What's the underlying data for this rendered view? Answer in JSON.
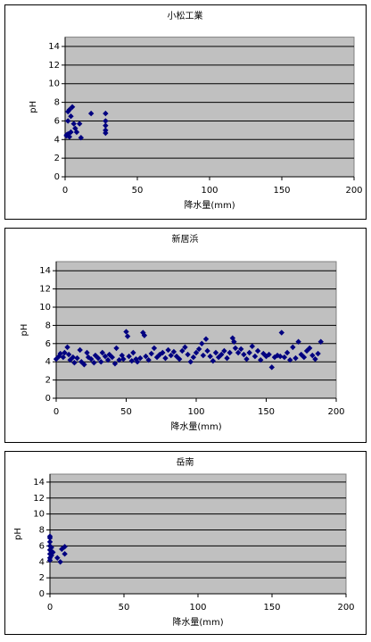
{
  "chart_data": [
    {
      "type": "scatter",
      "title": "小松工業",
      "x_label": "降水量(mm)",
      "y_label": "pH",
      "marker": "diamond",
      "grid": true,
      "xlim": [
        0,
        200
      ],
      "xticks": [
        0,
        50,
        100,
        150,
        200
      ],
      "ylim": [
        0,
        15
      ],
      "yticks": [
        0,
        2,
        4,
        6,
        8,
        10,
        12,
        14
      ],
      "series": [
        {
          "color": "#000080",
          "x": [
            1,
            1,
            2,
            2,
            3,
            3,
            4,
            4,
            5,
            6,
            7,
            8,
            10,
            11,
            18,
            28,
            28,
            28,
            28,
            28,
            2
          ],
          "values": [
            4.5,
            4.4,
            4.6,
            7.0,
            7.2,
            4.3,
            6.5,
            4.8,
            7.5,
            5.7,
            5.2,
            4.8,
            5.7,
            4.2,
            6.8,
            6.8,
            6.0,
            5.5,
            5.0,
            4.7,
            6.0
          ]
        }
      ]
    },
    {
      "type": "scatter",
      "title": "新居浜",
      "x_label": "降水量(mm)",
      "y_label": "pH",
      "marker": "diamond",
      "grid": true,
      "xlim": [
        0,
        200
      ],
      "xticks": [
        0,
        50,
        100,
        150,
        200
      ],
      "ylim": [
        0,
        15
      ],
      "yticks": [
        0,
        2,
        4,
        6,
        8,
        10,
        12,
        14
      ],
      "series": [
        {
          "color": "#000080",
          "x": [
            0,
            2,
            3,
            5,
            6,
            8,
            9,
            10,
            12,
            13,
            15,
            17,
            18,
            20,
            22,
            23,
            25,
            27,
            28,
            30,
            32,
            33,
            35,
            37,
            38,
            40,
            42,
            43,
            45,
            47,
            48,
            50,
            51,
            52,
            54,
            55,
            57,
            58,
            60,
            62,
            63,
            64,
            66,
            68,
            70,
            72,
            74,
            76,
            78,
            80,
            82,
            84,
            86,
            88,
            90,
            92,
            94,
            96,
            98,
            100,
            102,
            104,
            105,
            107,
            108,
            110,
            112,
            114,
            116,
            118,
            120,
            122,
            124,
            126,
            127,
            128,
            130,
            132,
            134,
            136,
            138,
            140,
            142,
            144,
            146,
            148,
            150,
            152,
            154,
            156,
            158,
            160,
            161,
            163,
            165,
            167,
            169,
            171,
            173,
            175,
            177,
            179,
            181,
            183,
            185,
            187,
            189
          ],
          "values": [
            4.3,
            4.6,
            4.9,
            4.5,
            5.0,
            5.6,
            4.8,
            4.2,
            4.5,
            3.9,
            4.4,
            5.3,
            4.0,
            3.7,
            5.0,
            4.5,
            4.3,
            3.9,
            4.7,
            4.4,
            4.0,
            5.0,
            4.6,
            4.2,
            4.8,
            4.5,
            3.8,
            5.5,
            4.2,
            4.7,
            4.3,
            7.3,
            6.8,
            4.6,
            4.1,
            5.0,
            4.3,
            4.0,
            4.4,
            7.2,
            6.9,
            4.6,
            4.2,
            4.9,
            5.5,
            4.5,
            4.8,
            5.0,
            4.4,
            5.3,
            4.7,
            5.1,
            4.6,
            4.3,
            5.2,
            5.6,
            4.8,
            4.0,
            4.5,
            5.0,
            5.4,
            6.0,
            4.7,
            6.5,
            5.2,
            4.6,
            4.1,
            5.0,
            4.5,
            4.8,
            5.2,
            4.4,
            5.0,
            6.6,
            6.2,
            5.5,
            5.0,
            5.4,
            4.8,
            4.3,
            5.0,
            5.7,
            4.6,
            5.2,
            4.2,
            4.9,
            4.6,
            4.8,
            3.4,
            4.5,
            4.7,
            4.6,
            7.2,
            4.5,
            5.0,
            4.2,
            5.6,
            4.4,
            6.2,
            4.8,
            4.5,
            5.2,
            5.5,
            4.7,
            4.3,
            4.9,
            6.2
          ]
        }
      ]
    },
    {
      "type": "scatter",
      "title": "岳南",
      "x_label": "降水量(mm)",
      "y_label": "pH",
      "marker": "diamond",
      "grid": true,
      "xlim": [
        0,
        200
      ],
      "xticks": [
        0,
        50,
        100,
        150,
        200
      ],
      "ylim": [
        0,
        15
      ],
      "yticks": [
        0,
        2,
        4,
        6,
        8,
        10,
        12,
        14
      ],
      "series": [
        {
          "color": "#000080",
          "x": [
            0,
            0,
            0,
            0,
            0,
            0,
            0,
            0,
            1,
            1,
            2,
            5,
            7,
            8,
            10,
            10
          ],
          "values": [
            7.2,
            7.0,
            6.5,
            6.0,
            5.5,
            5.0,
            4.5,
            4.2,
            5.8,
            4.8,
            5.2,
            4.5,
            4.0,
            5.6,
            5.9,
            5.0
          ]
        }
      ]
    }
  ]
}
